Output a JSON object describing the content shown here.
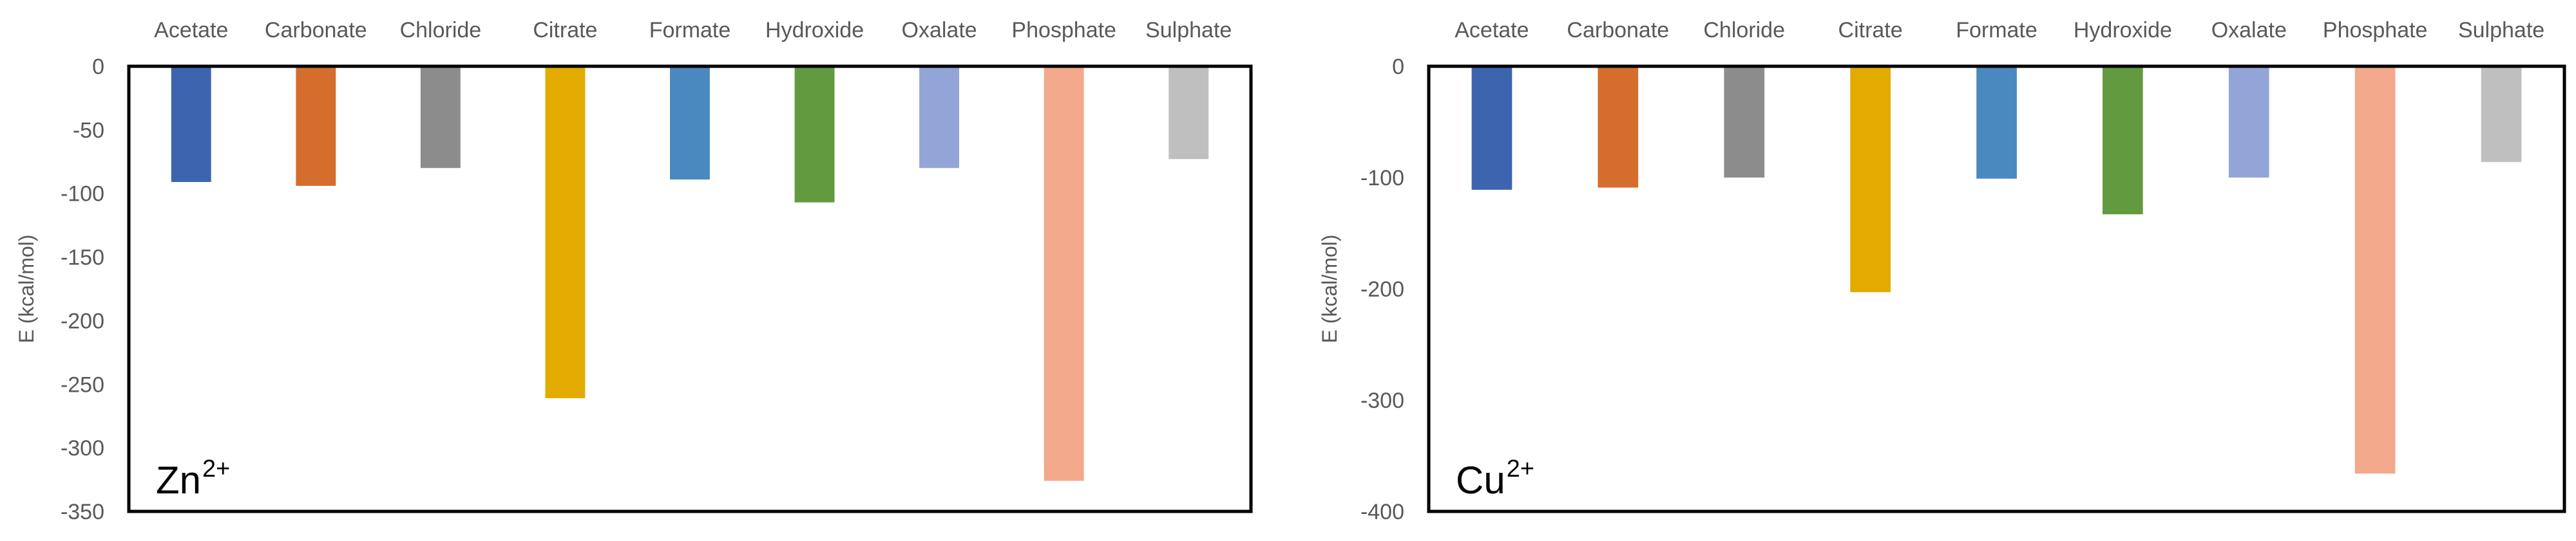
{
  "chart_data": [
    {
      "type": "bar",
      "panel_label": "Zn",
      "panel_label_sup": "2+",
      "categories": [
        "Acetate",
        "Carbonate",
        "Chloride",
        "Citrate",
        "Formate",
        "Hydroxide",
        "Oxalate",
        "Phosphate",
        "Sulphate"
      ],
      "values": [
        -91,
        -94,
        -80,
        -261,
        -89,
        -107,
        -80,
        -326,
        -73
      ],
      "colors": [
        "#3D64AE",
        "#D56E2C",
        "#8C8C8C",
        "#E3AB00",
        "#4A89C0",
        "#629A40",
        "#93A5D6",
        "#F2A98C",
        "#BFBFBF"
      ],
      "ylabel": "E (kcal/mol)",
      "ylim": [
        -350,
        0
      ],
      "yticks": [
        0,
        -50,
        -100,
        -150,
        -200,
        -250,
        -300,
        -350
      ],
      "ytick_labels": [
        "0",
        "-50",
        "-100",
        "-150",
        "-200",
        "-250",
        "-300",
        "-350"
      ],
      "grid": false,
      "category_labels_position": "top"
    },
    {
      "type": "bar",
      "panel_label": "Cu",
      "panel_label_sup": "2+",
      "categories": [
        "Acetate",
        "Carbonate",
        "Chloride",
        "Citrate",
        "Formate",
        "Hydroxide",
        "Oxalate",
        "Phosphate",
        "Sulphate"
      ],
      "values": [
        -111,
        -109,
        -100,
        -203,
        -101,
        -133,
        -100,
        -366,
        -86
      ],
      "colors": [
        "#3D64AE",
        "#D56E2C",
        "#8C8C8C",
        "#E3AB00",
        "#4A89C0",
        "#629A40",
        "#93A5D6",
        "#F2A98C",
        "#BFBFBF"
      ],
      "ylabel": "E (kcal/mol)",
      "ylim": [
        -400,
        0
      ],
      "yticks": [
        0,
        -100,
        -200,
        -300,
        -400
      ],
      "ytick_labels": [
        "0",
        "-100",
        "-200",
        "-300",
        "-400"
      ],
      "grid": false,
      "category_labels_position": "top"
    }
  ]
}
